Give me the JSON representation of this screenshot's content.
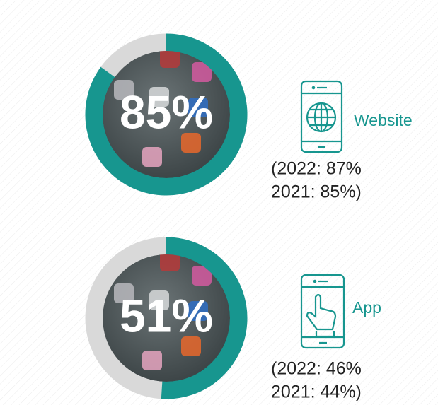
{
  "chart_data": [
    {
      "type": "donut",
      "values": [
        85
      ],
      "value_labels": [
        "85%"
      ],
      "ylim": [
        0,
        100
      ],
      "color": "#17968f",
      "track_color": "#d9d9d9",
      "label": "Website",
      "notes": [
        "(2022: 87%",
        "2021: 85%)"
      ]
    },
    {
      "type": "donut",
      "values": [
        51
      ],
      "value_labels": [
        "51%"
      ],
      "ylim": [
        0,
        100
      ],
      "color": "#17968f",
      "track_color": "#d9d9d9",
      "label": "App",
      "notes": [
        "(2022: 46%",
        "2021: 44%)"
      ]
    }
  ]
}
